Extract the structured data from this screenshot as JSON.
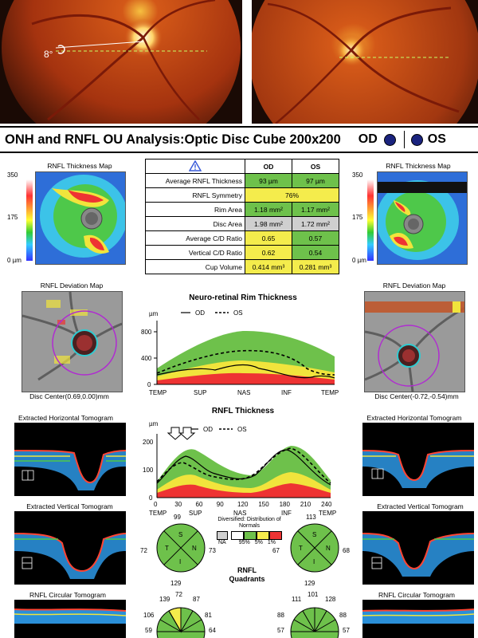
{
  "fundus": {
    "angle_label": "8°"
  },
  "title": "ONH and RNFL OU Analysis:Optic Disc Cube 200x200",
  "eye_od": "OD",
  "eye_os": "OS",
  "thickness_map": {
    "label": "RNFL Thickness Map",
    "scale_max": "350",
    "scale_mid": "175",
    "scale_min": "0 µm"
  },
  "table": {
    "warning_icon": "warning-triangle-icon",
    "col_od": "OD",
    "col_os": "OS",
    "rows": [
      {
        "label": "Average RNFL Thickness",
        "od": "93 µm",
        "os": "97 µm",
        "od_color": "g",
        "os_color": "g"
      },
      {
        "label": "RNFL Symmetry",
        "merged": "76%",
        "color": "y"
      },
      {
        "label": "Rim Area",
        "od": "1.18 mm²",
        "os": "1.17 mm²",
        "od_color": "g",
        "os_color": "g"
      },
      {
        "label": "Disc Area",
        "od": "1.98 mm²",
        "os": "1.72 mm²",
        "od_color": "gr",
        "os_color": "gr"
      },
      {
        "label": "Average C/D Ratio",
        "od": "0.65",
        "os": "0.57",
        "od_color": "y",
        "os_color": "g"
      },
      {
        "label": "Vertical C/D Ratio",
        "od": "0.62",
        "os": "0.54",
        "od_color": "y",
        "os_color": "g"
      },
      {
        "label": "Cup Volume",
        "od": "0.414 mm³",
        "os": "0.281 mm³",
        "od_color": "y",
        "os_color": "y"
      }
    ]
  },
  "deviation_map": {
    "label": "RNFL Deviation Map",
    "od_center": "Disc Center(0.69,0.00)mm",
    "os_center": "Disc Center(-0.72,-0.54)mm"
  },
  "rim_chart": {
    "title": "Neuro-retinal Rim Thickness",
    "unit": "µm",
    "legend_od": "OD",
    "legend_os": "OS",
    "yticks": [
      "800",
      "400",
      "0"
    ],
    "xticks": [
      "TEMP",
      "SUP",
      "NAS",
      "INF",
      "TEMP"
    ]
  },
  "rnfl_chart": {
    "title": "RNFL Thickness",
    "unit": "µm",
    "legend_od": "OD",
    "legend_os": "OS",
    "yticks": [
      "200",
      "100",
      "0"
    ],
    "xticks": [
      "0",
      "30",
      "60",
      "90",
      "120",
      "150",
      "180",
      "210",
      "240"
    ],
    "xcats": [
      "TEMP",
      "SUP",
      "NAS",
      "INF",
      "TEMP"
    ]
  },
  "tomograms": {
    "horizontal": "Extracted Horizontal Tomogram",
    "vertical": "Extracted Vertical Tomogram",
    "circular": "RNFL Circular Tomogram"
  },
  "quadrants": {
    "label": "RNFL Quadrants",
    "od": {
      "top": "99",
      "left": "72",
      "right": "73",
      "bottom": "129"
    },
    "os": {
      "top": "113",
      "left": "67",
      "right": "68",
      "bottom": "129"
    },
    "letters": {
      "s": "S",
      "t": "T",
      "n": "N",
      "i": "I"
    }
  },
  "legend": {
    "title": "Diversified: Distribution of Normals",
    "na": "NA",
    "p95": "95%",
    "p5": "5%",
    "p1": "1%"
  },
  "clock": {
    "od": {
      "values": [
        "139",
        "72",
        "87",
        "106",
        "81",
        "59",
        "64"
      ]
    },
    "os": {
      "values": [
        "111",
        "101",
        "128",
        "88",
        "88",
        "57",
        "57"
      ]
    }
  },
  "colors": {
    "normal": "#6ec14b",
    "borderline": "#f4ec4c",
    "outside": "#e33",
    "na": "#cfcfcf",
    "eye_dot": "#1a237e"
  }
}
